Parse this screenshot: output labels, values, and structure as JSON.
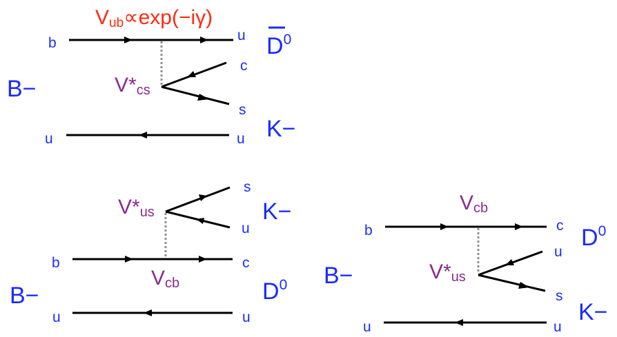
{
  "top": {
    "coupling": {
      "main": "V",
      "sub": "ub",
      "rest": "∝exp(−iγ)"
    },
    "vertex": {
      "main": "V*",
      "sub": "cs"
    },
    "quarks": {
      "b": "b",
      "u_top": "u",
      "c": "c",
      "s": "s",
      "u_spec_in": "u",
      "u_spec_out": "u"
    },
    "mesons": {
      "B": "B−",
      "D": "D",
      "D_sup": "0",
      "K": "K−"
    }
  },
  "bottom_left": {
    "vertex": {
      "main": "V*",
      "sub": "us"
    },
    "coupling": {
      "main": "V",
      "sub": "cb"
    },
    "quarks": {
      "s": "s",
      "u_pair": "u",
      "b": "b",
      "c": "c",
      "u_spec_in": "u",
      "u_spec_out": "u"
    },
    "mesons": {
      "B": "B−",
      "K": "K−",
      "D": "D",
      "D_sup": "0"
    }
  },
  "bottom_right": {
    "coupling": {
      "main": "V",
      "sub": "cb"
    },
    "vertex": {
      "main": "V*",
      "sub": "us"
    },
    "quarks": {
      "b": "b",
      "c": "c",
      "u_pair": "u",
      "s": "s",
      "u_spec_in": "u",
      "u_spec_out": "u"
    },
    "mesons": {
      "B": "B−",
      "D": "D",
      "D_sup": "0",
      "K": "K−"
    }
  },
  "colors": {
    "particle": "#1a2bff",
    "ckm": "#8b2a8f",
    "highlight": "#ff2a12"
  }
}
